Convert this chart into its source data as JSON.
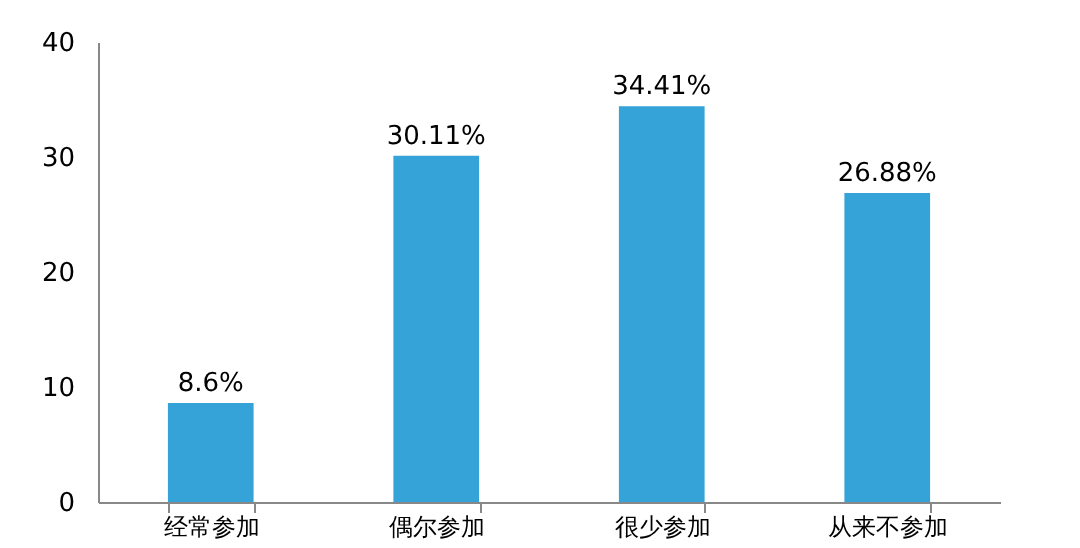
{
  "chart_data": {
    "type": "bar",
    "categories": [
      "经常参加",
      "偶尔参加",
      "很少参加",
      "从来不参加"
    ],
    "values": [
      8.6,
      30.11,
      34.41,
      26.88
    ],
    "value_labels": [
      "8.6%",
      "30.11%",
      "34.41%",
      "26.88%"
    ],
    "color": "#35a2d8",
    "ylim": [
      0,
      40
    ],
    "yticks": [
      0,
      10,
      20,
      30,
      40
    ],
    "grid": false
  }
}
